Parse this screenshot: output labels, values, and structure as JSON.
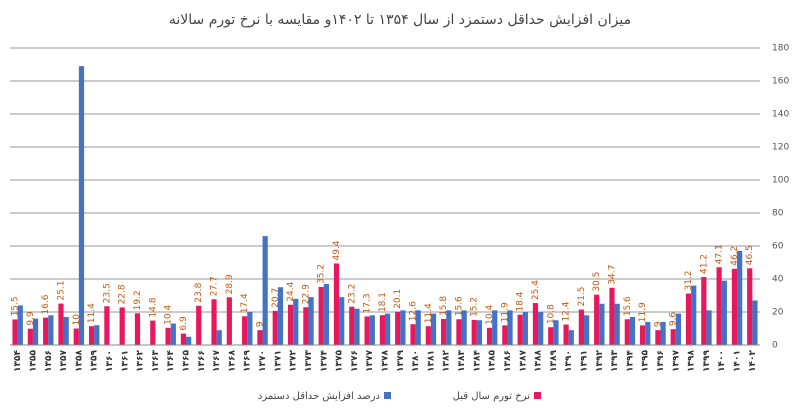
{
  "chart_data": {
    "type": "bar",
    "title": "میزان افزایش حداقل دستمزد از سال ۱۳۵۴ تا ۱۴۰۲و مقایسه با نرخ تورم سالانه",
    "categories": [
      "۱۳۵۴",
      "۱۳۵۵",
      "۱۳۵۶",
      "۱۳۵۷",
      "۱۳۵۸",
      "۱۳۵۹",
      "۱۳۶۰",
      "۱۳۶۱",
      "۱۳۶۲",
      "۱۳۶۳",
      "۱۳۶۴",
      "۱۳۶۵",
      "۱۳۶۶",
      "۱۳۶۷",
      "۱۳۶۸",
      "۱۳۶۹",
      "۱۳۷۰",
      "۱۳۷۱",
      "۱۳۷۲",
      "۱۳۷۳",
      "۱۳۷۴",
      "۱۳۷۵",
      "۱۳۷۶",
      "۱۳۷۷",
      "۱۳۷۸",
      "۱۳۷۹",
      "۱۳۸۰",
      "۱۳۸۱",
      "۱۳۸۲",
      "۱۳۸۳",
      "۱۳۸۴",
      "۱۳۸۵",
      "۱۳۸۶",
      "۱۳۸۷",
      "۱۳۸۸",
      "۱۳۸۹",
      "۱۳۹۰",
      "۱۳۹۱",
      "۱۳۹۲",
      "۱۳۹۳",
      "۱۳۹۴",
      "۱۳۹۵",
      "۱۳۹۶",
      "۱۳۹۷",
      "۱۳۹۸",
      "۱۳۹۹",
      "۱۴۰۰",
      "۱۴۰۱",
      "۱۴۰۲"
    ],
    "series": [
      {
        "name": "درصد افزایش حداقل دستمزد",
        "color": "#4472c4",
        "values": [
          24,
          16,
          18,
          17,
          169,
          12,
          0,
          0,
          0,
          0,
          13,
          5,
          0,
          9,
          0,
          20,
          66,
          35,
          28,
          29,
          37,
          29,
          22,
          18,
          19,
          21,
          21,
          19,
          21,
          21,
          15,
          21,
          21,
          20,
          20,
          15,
          9,
          18,
          25,
          25,
          17,
          14,
          14,
          19,
          36,
          21,
          39,
          57,
          27
        ]
      },
      {
        "name": "نرخ تورم سال قبل",
        "color": "#e8185e",
        "label_color": "#c55a11",
        "values": [
          15.5,
          9.9,
          16.6,
          25.1,
          10,
          11.4,
          23.5,
          22.8,
          19.2,
          14.8,
          10.4,
          6.9,
          23.8,
          27.7,
          28.9,
          17.4,
          9,
          20.7,
          24.4,
          22.9,
          35.2,
          49.4,
          23.2,
          17.3,
          18.1,
          20.1,
          12.6,
          11.4,
          15.8,
          15.6,
          15.2,
          10.4,
          11.9,
          18.4,
          25.4,
          10.8,
          12.4,
          21.5,
          30.5,
          34.7,
          15.6,
          11.9,
          9,
          9.6,
          31.2,
          41.2,
          47.1,
          46.2,
          46.5
        ]
      }
    ],
    "ylim": [
      0,
      180
    ],
    "yticks": [
      0,
      20,
      40,
      60,
      80,
      100,
      120,
      140,
      160,
      180
    ],
    "grid": true
  }
}
